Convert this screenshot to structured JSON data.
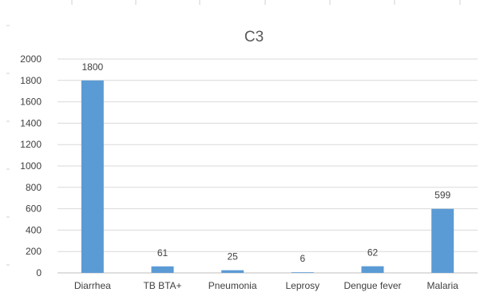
{
  "chart_data": {
    "type": "bar",
    "title": "C3",
    "categories": [
      "Diarrhea",
      "TB BTA+",
      "Pneumonia",
      "Leprosy",
      "Dengue fever",
      "Malaria"
    ],
    "values": [
      1800,
      61,
      25,
      6,
      62,
      599
    ],
    "data_labels": [
      "1800",
      "61",
      "25",
      "6",
      "62",
      "599"
    ],
    "xlabel": "",
    "ylabel": "",
    "ylim": [
      0,
      2000
    ],
    "yticks": [
      0,
      200,
      400,
      600,
      800,
      1000,
      1200,
      1400,
      1600,
      1800,
      2000
    ],
    "ytick_labels": [
      "0",
      "200",
      "400",
      "600",
      "800",
      "1000",
      "1200",
      "1400",
      "1600",
      "1800",
      "2000"
    ],
    "grid": true,
    "legend": "none",
    "bar_color": "#5b9bd5",
    "grid_color": "#d9d9d9",
    "axis_color": "#bfbfbf"
  }
}
